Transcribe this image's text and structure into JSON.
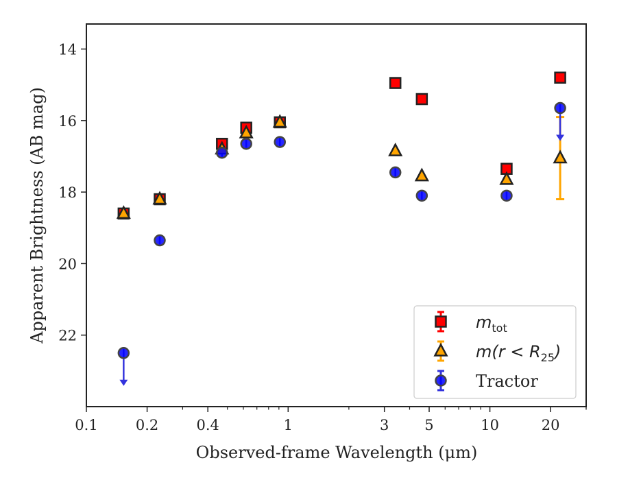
{
  "chart_data": {
    "type": "scatter",
    "xlabel": "Observed-frame Wavelength (μm)",
    "ylabel": "Apparent Brightness (AB mag)",
    "x_scale": "log",
    "y_inverted": true,
    "xlim": [
      0.1,
      30
    ],
    "ylim": [
      24.0,
      13.3
    ],
    "x_ticks": [
      {
        "value": 0.1,
        "label": "0.1"
      },
      {
        "value": 0.2,
        "label": "0.2"
      },
      {
        "value": 0.4,
        "label": "0.4"
      },
      {
        "value": 1,
        "label": "1"
      },
      {
        "value": 3,
        "label": "3"
      },
      {
        "value": 5,
        "label": "5"
      },
      {
        "value": 10,
        "label": "10"
      },
      {
        "value": 20,
        "label": "20"
      }
    ],
    "y_ticks": [
      {
        "value": 14,
        "label": "14"
      },
      {
        "value": 16,
        "label": "16"
      },
      {
        "value": 18,
        "label": "18"
      },
      {
        "value": 20,
        "label": "20"
      },
      {
        "value": 22,
        "label": "22"
      }
    ],
    "legend_position": "lower-right",
    "series": [
      {
        "name": "m_tot",
        "legend_label": "m",
        "legend_sub": "tot",
        "marker": "square",
        "color": "#ff0000",
        "edge_color": "#222222",
        "error_color": "#ff0000",
        "points": [
          {
            "x": 0.153,
            "y": 18.6
          },
          {
            "x": 0.231,
            "y": 18.2
          },
          {
            "x": 0.47,
            "y": 16.65
          },
          {
            "x": 0.62,
            "y": 16.2
          },
          {
            "x": 0.91,
            "y": 16.05
          },
          {
            "x": 3.4,
            "y": 14.95
          },
          {
            "x": 4.6,
            "y": 15.4
          },
          {
            "x": 12.1,
            "y": 17.35
          },
          {
            "x": 22.3,
            "y": 14.8
          }
        ]
      },
      {
        "name": "m(r<R_25)",
        "legend_label": "m(r < R",
        "legend_sub": "25",
        "legend_tail": ")",
        "marker": "triangle",
        "color": "#ffa500",
        "edge_color": "#222222",
        "error_color": "#ffa500",
        "points": [
          {
            "x": 0.153,
            "y": 18.6
          },
          {
            "x": 0.231,
            "y": 18.2
          },
          {
            "x": 0.47,
            "y": 16.8
          },
          {
            "x": 0.62,
            "y": 16.35
          },
          {
            "x": 0.91,
            "y": 16.05
          },
          {
            "x": 3.4,
            "y": 16.85
          },
          {
            "x": 4.6,
            "y": 17.55
          },
          {
            "x": 12.1,
            "y": 17.65
          },
          {
            "x": 22.3,
            "y": 17.05,
            "err_low": 15.9,
            "err_high": 18.2
          }
        ]
      },
      {
        "name": "Tractor",
        "legend_label": "Tractor",
        "marker": "circle",
        "color": "#0000ff",
        "edge_color": "#444444",
        "error_color": "#3333dd",
        "points": [
          {
            "x": 0.153,
            "y": 22.5,
            "upper_limit": true
          },
          {
            "x": 0.231,
            "y": 19.35
          },
          {
            "x": 0.47,
            "y": 16.9
          },
          {
            "x": 0.62,
            "y": 16.65
          },
          {
            "x": 0.91,
            "y": 16.6
          },
          {
            "x": 3.4,
            "y": 17.45
          },
          {
            "x": 4.6,
            "y": 18.1
          },
          {
            "x": 12.1,
            "y": 18.1
          },
          {
            "x": 22.3,
            "y": 15.65,
            "upper_limit": true
          }
        ]
      }
    ]
  }
}
